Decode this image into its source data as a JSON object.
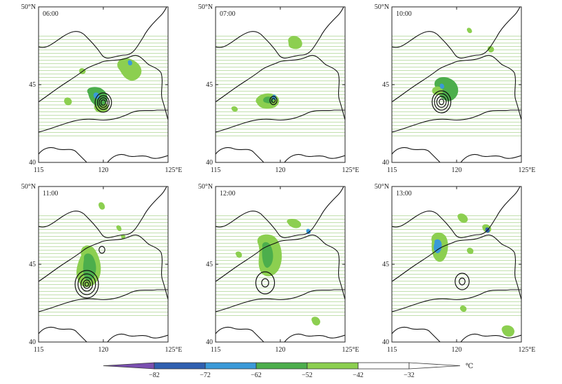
{
  "panels": [
    {
      "time": "06:00"
    },
    {
      "time": "07:00"
    },
    {
      "time": "10:00"
    },
    {
      "time": "11:00"
    },
    {
      "time": "12:00"
    },
    {
      "time": "13:00"
    }
  ],
  "axes": {
    "lat_ticks": [
      "40",
      "45",
      "50°N"
    ],
    "lon_ticks": [
      "115",
      "120",
      "125°E"
    ]
  },
  "colorbar": {
    "ticks": [
      "−82",
      "−72",
      "−62",
      "−52",
      "−42",
      "−32"
    ],
    "unit": "℃",
    "colors": [
      "#7a4fb0",
      "#2f5fb0",
      "#3a9ad8",
      "#4cae4c",
      "#8ccf50",
      "#ffffff"
    ]
  }
}
